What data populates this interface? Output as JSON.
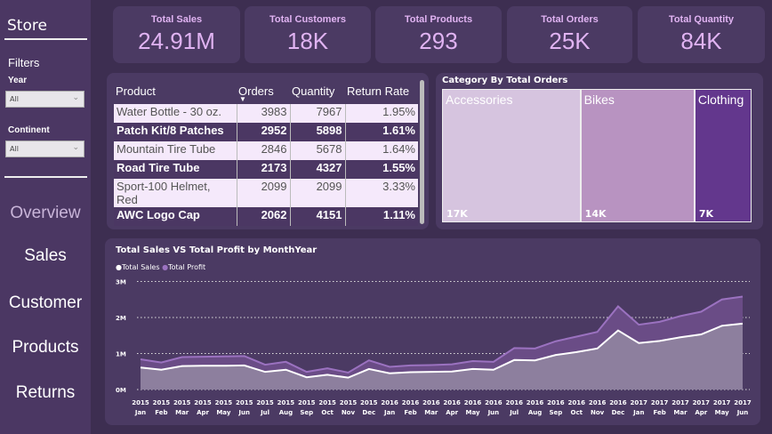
{
  "sidebar": {
    "title": "Store",
    "filters_label": "Filters",
    "year_label": "Year",
    "year_value": "All",
    "continent_label": "Continent",
    "continent_value": "All",
    "nav": [
      {
        "label": "Overview",
        "active": true
      },
      {
        "label": "Sales"
      },
      {
        "label": "Customer"
      },
      {
        "label": "Products"
      },
      {
        "label": "Returns"
      }
    ]
  },
  "kpis": [
    {
      "title": "Total Sales",
      "value": "24.91M"
    },
    {
      "title": "Total Customers",
      "value": "18K"
    },
    {
      "title": "Total Products",
      "value": "293"
    },
    {
      "title": "Total Orders",
      "value": "25K"
    },
    {
      "title": "Total Quantity",
      "value": "84K"
    }
  ],
  "table": {
    "headers": [
      "Product",
      "Orders",
      "Quantity",
      "Return Rate"
    ],
    "sort_column": "Orders",
    "sort_direction": "descending",
    "rows": [
      [
        "Water Bottle - 30 oz.",
        "3983",
        "7967",
        "1.95%"
      ],
      [
        "Patch Kit/8 Patches",
        "2952",
        "5898",
        "1.61%"
      ],
      [
        "Mountain Tire Tube",
        "2846",
        "5678",
        "1.64%"
      ],
      [
        "Road Tire Tube",
        "2173",
        "4327",
        "1.55%"
      ],
      [
        "Sport-100 Helmet, Red",
        "2099",
        "2099",
        "3.33%"
      ],
      [
        "AWC Logo Cap",
        "2062",
        "4151",
        "1.11%"
      ]
    ]
  },
  "chart_data": [
    {
      "type": "treemap",
      "title": "Category By Total Orders",
      "categories": [
        "Accessories",
        "Bikes",
        "Clothing"
      ],
      "values": [
        17000,
        14000,
        7000
      ],
      "labels": [
        "17K",
        "14K",
        "7K"
      ],
      "colors": [
        "#d6c4df",
        "#b893c1",
        "#63378d"
      ]
    },
    {
      "type": "area",
      "stacked": true,
      "title": "Total Sales VS Total Profit by MonthYear",
      "legend_position": "top-left",
      "x": [
        "2015 Jan",
        "2015 Feb",
        "2015 Mar",
        "2015 Apr",
        "2015 May",
        "2015 Jun",
        "2015 Jul",
        "2015 Aug",
        "2015 Sep",
        "2015 Oct",
        "2015 Nov",
        "2015 Dec",
        "2016 Jan",
        "2016 Feb",
        "2016 Mar",
        "2016 Apr",
        "2016 May",
        "2016 Jun",
        "2016 Jul",
        "2016 Aug",
        "2016 Sep",
        "2016 Oct",
        "2016 Nov",
        "2016 Dec",
        "2017 Jan",
        "2017 Feb",
        "2017 Mar",
        "2017 Apr",
        "2017 May",
        "2017 Jun"
      ],
      "yticks": [
        "0M",
        "1M",
        "2M",
        "3M"
      ],
      "ylim": [
        0,
        3000000
      ],
      "grid": true,
      "series": [
        {
          "name": "Total Sales",
          "color": "#ffffff",
          "values": [
            610000,
            550000,
            650000,
            660000,
            660000,
            670000,
            490000,
            550000,
            340000,
            410000,
            330000,
            570000,
            450000,
            480000,
            490000,
            500000,
            570000,
            550000,
            820000,
            810000,
            960000,
            1040000,
            1140000,
            1640000,
            1290000,
            1350000,
            1450000,
            1530000,
            1770000,
            1830000
          ]
        },
        {
          "name": "Total Profit",
          "color": "#9b72c0",
          "values": [
            230000,
            200000,
            250000,
            250000,
            260000,
            260000,
            200000,
            220000,
            150000,
            180000,
            140000,
            240000,
            180000,
            190000,
            190000,
            200000,
            220000,
            220000,
            330000,
            330000,
            380000,
            430000,
            460000,
            670000,
            510000,
            530000,
            590000,
            630000,
            730000,
            750000
          ]
        }
      ]
    }
  ]
}
